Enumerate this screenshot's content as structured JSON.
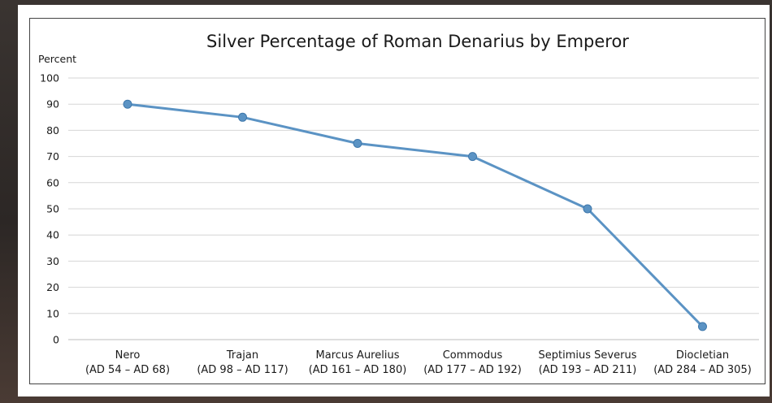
{
  "chart_data": {
    "type": "line",
    "title": "Silver Percentage of Roman Denarius by Emperor",
    "ylabel": "Percent",
    "xlabel": "",
    "ylim": [
      0,
      100
    ],
    "yticks": [
      0,
      10,
      20,
      30,
      40,
      50,
      60,
      70,
      80,
      90,
      100
    ],
    "grid": true,
    "categories": [
      {
        "name": "Nero",
        "period": "(AD 54 – AD 68)"
      },
      {
        "name": "Trajan",
        "period": "(AD 98 – AD 117)"
      },
      {
        "name": "Marcus Aurelius",
        "period": "(AD 161 – AD 180)"
      },
      {
        "name": "Commodus",
        "period": "(AD 177 – AD 192)"
      },
      {
        "name": "Septimius Severus",
        "period": "(AD 193 – AD 211)"
      },
      {
        "name": "Diocletian",
        "period": "(AD 284 – AD 305)"
      }
    ],
    "series": [
      {
        "values": [
          90,
          85,
          75,
          70,
          50,
          5
        ],
        "color": "#5b93c4"
      }
    ]
  }
}
